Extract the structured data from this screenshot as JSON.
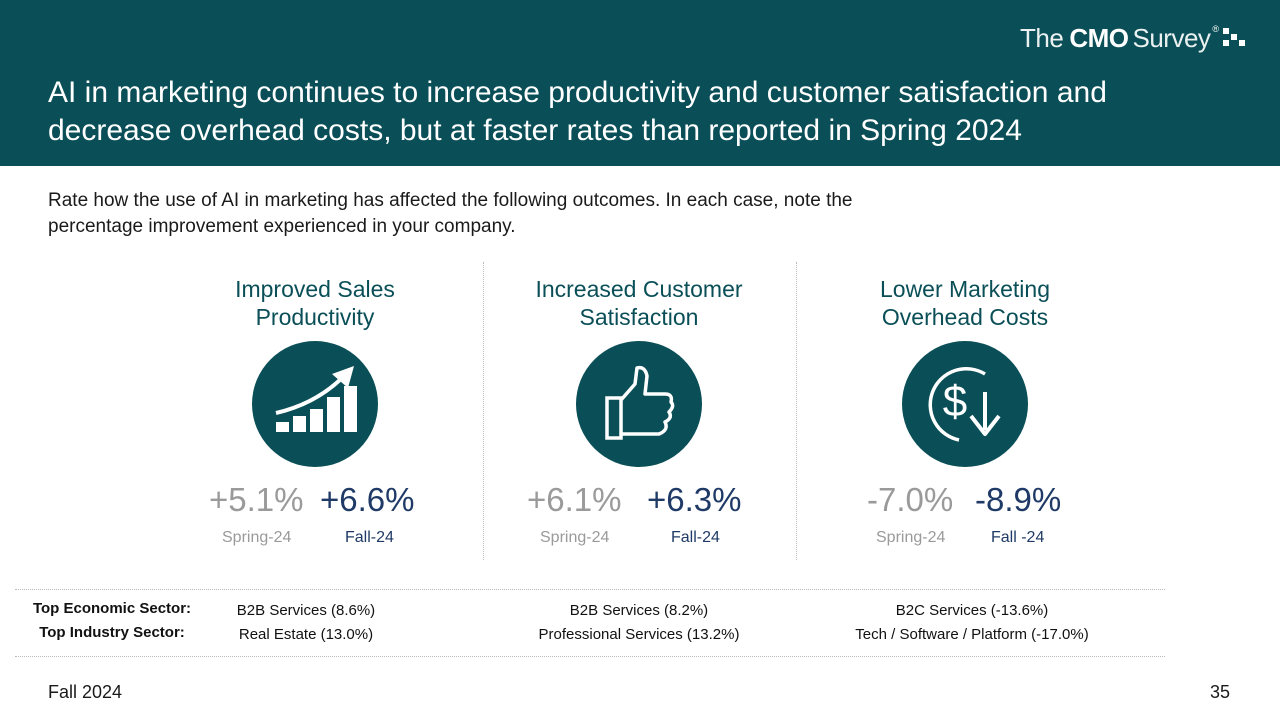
{
  "logo": {
    "part1": "The",
    "part2": "CMO",
    "part3": "Survey",
    "reg": "®"
  },
  "title": "AI in marketing continues to increase productivity and customer satisfaction and decrease overhead costs, but at faster rates than reported in Spring 2024",
  "prompt": "Rate how the use of AI in marketing has affected the following outcomes. In each case, note the percentage improvement experienced in your company.",
  "metrics": [
    {
      "title_line1": "Improved Sales",
      "title_line2": "Productivity",
      "icon": "growth-chart-icon",
      "spring_value": "+5.1%",
      "spring_label": "Spring-24",
      "fall_value": "+6.6%",
      "fall_label": "Fall-24"
    },
    {
      "title_line1": "Increased Customer",
      "title_line2": "Satisfaction",
      "icon": "thumbs-up-icon",
      "spring_value": "+6.1%",
      "spring_label": "Spring-24",
      "fall_value": "+6.3%",
      "fall_label": "Fall-24"
    },
    {
      "title_line1": "Lower Marketing",
      "title_line2": "Overhead Costs",
      "icon": "dollar-decrease-icon",
      "spring_value": "-7.0%",
      "spring_label": "Spring-24",
      "fall_value": "-8.9%",
      "fall_label": "Fall -24"
    }
  ],
  "sectors": {
    "economic_label": "Top Economic Sector:",
    "industry_label": "Top Industry Sector:",
    "economic": [
      "B2B Services (8.6%)",
      "B2B Services (8.2%)",
      "B2C Services (-13.6%)"
    ],
    "industry": [
      "Real Estate (13.0%)",
      "Professional Services (13.2%)",
      "Tech / Software / Platform (-17.0%)"
    ]
  },
  "footer": {
    "period": "Fall 2024",
    "page": "35"
  },
  "colors": {
    "brand_teal": "#0a4f57",
    "fall_navy": "#1f3a66",
    "spring_gray": "#9a9a9a"
  }
}
